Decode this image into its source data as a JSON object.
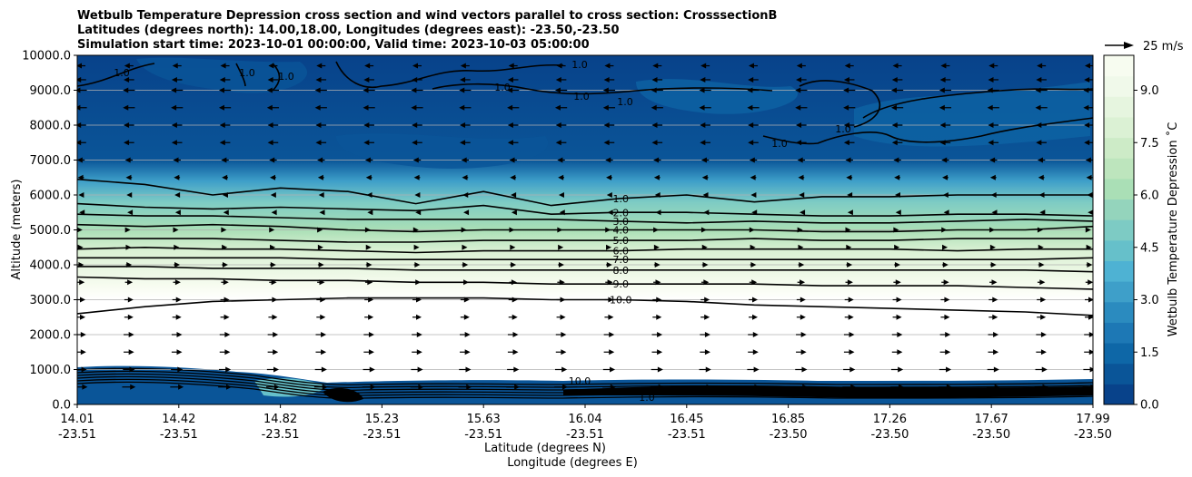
{
  "chart_data": {
    "type": "contourf",
    "title_lines": [
      "Wetbulb Temperature Depression cross section and wind vectors parallel to cross section: CrosssectionB",
      "Latitudes (degrees north): 14.00,18.00, Longitudes (degrees east): -23.50,-23.50",
      "Simulation start time: 2023-10-01 00:00:00, Valid time: 2023-10-03 05:00:00"
    ],
    "ylabel": "Altitude (meters)",
    "xlabel_lat": "Latitude (degrees N)",
    "xlabel_lon": "Longitude (degrees E)",
    "ylim": [
      0,
      10000
    ],
    "y_ticks": [
      "0.0",
      "1000.0",
      "2000.0",
      "3000.0",
      "4000.0",
      "5000.0",
      "6000.0",
      "7000.0",
      "8000.0",
      "9000.0",
      "10000.0"
    ],
    "x_ticks": [
      {
        "lat": "14.01",
        "lon": "-23.51"
      },
      {
        "lat": "14.42",
        "lon": "-23.51"
      },
      {
        "lat": "14.82",
        "lon": "-23.51"
      },
      {
        "lat": "15.23",
        "lon": "-23.51"
      },
      {
        "lat": "15.63",
        "lon": "-23.51"
      },
      {
        "lat": "16.04",
        "lon": "-23.51"
      },
      {
        "lat": "16.45",
        "lon": "-23.51"
      },
      {
        "lat": "16.85",
        "lon": "-23.50"
      },
      {
        "lat": "17.26",
        "lon": "-23.50"
      },
      {
        "lat": "17.67",
        "lon": "-23.50"
      },
      {
        "lat": "17.99",
        "lon": "-23.50"
      }
    ],
    "colorbar": {
      "label": "Wetbulb Temperature Depression ˚C",
      "range": [
        0,
        10
      ],
      "ticks": [
        "0.0",
        "1.5",
        "3.0",
        "4.5",
        "6.0",
        "7.5",
        "9.0"
      ],
      "colors": [
        "#08428a",
        "#0a5598",
        "#0e67a7",
        "#1d78b5",
        "#2b8bbf",
        "#3e9fc9",
        "#4eb2d3",
        "#66c0ca",
        "#7dcbc4",
        "#94d4bc",
        "#aadfb6",
        "#bde5bd",
        "#cdebc7",
        "#dbf1d4",
        "#e6f5df",
        "#f0f9ea",
        "#f7fcf0"
      ]
    },
    "contour_levels": [
      {
        "label": "1.0",
        "y": [
          6450,
          6300,
          6000,
          6200,
          6100,
          5750,
          6100,
          5700,
          5900,
          6000,
          5800,
          5950,
          5950,
          6000,
          6000,
          6000
        ]
      },
      {
        "label": "2.0",
        "y": [
          5750,
          5650,
          5600,
          5650,
          5600,
          5550,
          5700,
          5450,
          5500,
          5500,
          5450,
          5400,
          5400,
          5450,
          5450,
          5400
        ]
      },
      {
        "label": "3.0",
        "y": [
          5450,
          5400,
          5400,
          5350,
          5300,
          5300,
          5300,
          5300,
          5250,
          5200,
          5250,
          5200,
          5200,
          5250,
          5300,
          5250
        ]
      },
      {
        "label": "4.0",
        "y": [
          5150,
          5100,
          5150,
          5100,
          5000,
          4950,
          5000,
          5000,
          5000,
          5000,
          5000,
          4950,
          4950,
          5000,
          5000,
          5100
        ]
      },
      {
        "label": "5.0",
        "y": [
          4750,
          4750,
          4750,
          4700,
          4650,
          4650,
          4700,
          4700,
          4700,
          4700,
          4750,
          4700,
          4700,
          4750,
          4750,
          4750
        ]
      },
      {
        "label": "6.0",
        "y": [
          4450,
          4500,
          4450,
          4450,
          4400,
          4350,
          4400,
          4400,
          4400,
          4450,
          4450,
          4450,
          4450,
          4400,
          4450,
          4450
        ]
      },
      {
        "label": "7.0",
        "y": [
          4200,
          4200,
          4200,
          4200,
          4150,
          4150,
          4150,
          4150,
          4150,
          4150,
          4150,
          4150,
          4150,
          4150,
          4150,
          4200
        ]
      },
      {
        "label": "8.0",
        "y": [
          3950,
          3950,
          3900,
          3900,
          3900,
          3850,
          3850,
          3850,
          3850,
          3850,
          3850,
          3850,
          3850,
          3850,
          3850,
          3800
        ]
      },
      {
        "label": "9.0",
        "y": [
          3650,
          3600,
          3600,
          3550,
          3550,
          3500,
          3500,
          3450,
          3450,
          3450,
          3450,
          3400,
          3400,
          3400,
          3350,
          3300
        ]
      },
      {
        "label": "10.0",
        "y": [
          2600,
          2800,
          2950,
          3000,
          3050,
          3050,
          3050,
          3000,
          3000,
          2950,
          2850,
          2800,
          2750,
          2700,
          2650,
          2550
        ]
      }
    ],
    "wind_vector_key": {
      "label": "25 m/s",
      "speed": 25
    },
    "wind_rows": [
      {
        "altitude": 9700,
        "u": -5
      },
      {
        "altitude": 9300,
        "u": -6
      },
      {
        "altitude": 9000,
        "u": -7
      },
      {
        "altitude": 8500,
        "u": -7
      },
      {
        "altitude": 8000,
        "u": -6
      },
      {
        "altitude": 7500,
        "u": -6
      },
      {
        "altitude": 7000,
        "u": -4
      },
      {
        "altitude": 6500,
        "u": -3
      },
      {
        "altitude": 6000,
        "u": -2
      },
      {
        "altitude": 5500,
        "u": -1
      },
      {
        "altitude": 5000,
        "u": 1
      },
      {
        "altitude": 4500,
        "u": 2
      },
      {
        "altitude": 4000,
        "u": 3
      },
      {
        "altitude": 3500,
        "u": 4
      },
      {
        "altitude": 3000,
        "u": 5
      },
      {
        "altitude": 2500,
        "u": 5
      },
      {
        "altitude": 2000,
        "u": 6
      },
      {
        "altitude": 1500,
        "u": 6
      },
      {
        "altitude": 1000,
        "u": 7
      },
      {
        "altitude": 500,
        "u": 8
      }
    ]
  }
}
